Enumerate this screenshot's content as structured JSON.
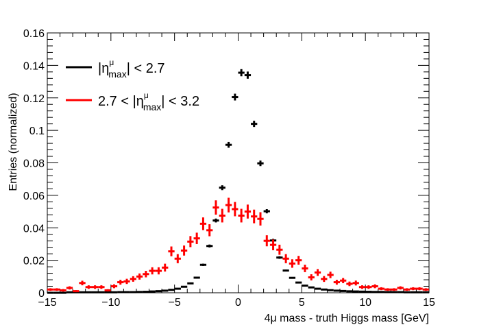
{
  "chart_data": {
    "type": "scatter",
    "ylabel": "Entries (normalized)",
    "xlabel": "4μ mass - truth Higgs mass [GeV]",
    "xlim": [
      -15,
      15
    ],
    "ylim": [
      0,
      0.16
    ],
    "x_ticks": [
      -15,
      -10,
      -5,
      0,
      5,
      10,
      15
    ],
    "x_tick_labels": [
      "−15",
      "−10",
      "−5",
      "0",
      "5",
      "10",
      "15"
    ],
    "y_ticks": [
      0,
      0.02,
      0.04,
      0.06,
      0.08,
      0.1,
      0.12,
      0.14,
      0.16
    ],
    "y_tick_labels": [
      "0",
      "0.02",
      "0.04",
      "0.06",
      "0.08",
      "0.1",
      "0.12",
      "0.14",
      "0.16"
    ],
    "legend_position": "top-left",
    "bin_width": 0.5,
    "series": [
      {
        "legend_parts": [
          "|η",
          "μ",
          "max",
          "| < 2.7"
        ],
        "color": "#000000",
        "x": [
          -15.25,
          -14.75,
          -14.25,
          -13.75,
          -13.25,
          -12.75,
          -12.25,
          -11.75,
          -11.25,
          -10.75,
          -10.25,
          -9.75,
          -9.25,
          -8.75,
          -8.25,
          -7.75,
          -7.25,
          -6.75,
          -6.25,
          -5.75,
          -5.25,
          -4.75,
          -4.25,
          -3.75,
          -3.25,
          -2.75,
          -2.25,
          -1.75,
          -1.25,
          -0.75,
          -0.25,
          0.25,
          0.75,
          1.25,
          1.75,
          2.25,
          2.75,
          3.25,
          3.75,
          4.25,
          4.75,
          5.25,
          5.75,
          6.25,
          6.75,
          7.25,
          7.75,
          8.25,
          8.75,
          9.25,
          9.75,
          10.25,
          10.75,
          11.25,
          11.75,
          12.25,
          12.75,
          13.25,
          13.75,
          14.25,
          14.75
        ],
        "y": [
          0,
          0,
          0,
          0,
          0.0003,
          0.0003,
          0.0003,
          0.0003,
          0.0003,
          0.0003,
          0.0003,
          0.0003,
          0.0004,
          0.0004,
          0.0004,
          0.0005,
          0.0006,
          0.0008,
          0.001,
          0.0013,
          0.0018,
          0.0025,
          0.0037,
          0.0058,
          0.0093,
          0.0172,
          0.0288,
          0.0445,
          0.0647,
          0.0911,
          0.1205,
          0.1355,
          0.134,
          0.104,
          0.0797,
          0.0502,
          0.0322,
          0.0217,
          0.0137,
          0.0092,
          0.0063,
          0.0044,
          0.0033,
          0.0025,
          0.002,
          0.0016,
          0.0013,
          0.0011,
          0.0009,
          0.0008,
          0.0007,
          0.0006,
          0.0005,
          0.0005,
          0.0004,
          0.0004,
          0.0004,
          0.0003,
          0.0003,
          0.0003,
          0.0003
        ],
        "err": [
          0,
          0,
          0,
          0,
          0,
          0,
          0,
          0,
          0,
          0,
          0,
          0,
          0,
          0,
          0,
          0,
          0,
          0,
          0,
          0,
          0,
          0,
          0,
          0,
          0.0005,
          0.0007,
          0.0009,
          0.0012,
          0.0015,
          0.0018,
          0.0021,
          0.0022,
          0.0022,
          0.0019,
          0.0017,
          0.0013,
          0.001,
          0.0008,
          0.0006,
          0.0005,
          0,
          0,
          0,
          0,
          0,
          0,
          0,
          0,
          0,
          0,
          0,
          0,
          0,
          0,
          0,
          0,
          0,
          0,
          0,
          0,
          0
        ]
      },
      {
        "legend_parts": [
          "2.7 < |η",
          "μ",
          "max",
          "| < 3.2"
        ],
        "color": "#ff0000",
        "x": [
          -15.25,
          -14.75,
          -14.25,
          -13.75,
          -13.25,
          -12.75,
          -12.25,
          -11.75,
          -11.25,
          -10.75,
          -10.25,
          -9.75,
          -9.25,
          -8.75,
          -8.25,
          -7.75,
          -7.25,
          -6.75,
          -6.25,
          -5.75,
          -5.25,
          -4.75,
          -4.25,
          -3.75,
          -3.25,
          -2.75,
          -2.25,
          -1.75,
          -1.25,
          -0.75,
          -0.25,
          0.25,
          0.75,
          1.25,
          1.75,
          2.25,
          2.75,
          3.25,
          3.75,
          4.25,
          4.75,
          5.25,
          5.75,
          6.25,
          6.75,
          7.25,
          7.75,
          8.25,
          8.75,
          9.25,
          9.75,
          10.25,
          10.75,
          11.25,
          11.75,
          12.25,
          12.75,
          13.25,
          13.75,
          14.25,
          14.75
        ],
        "y": [
          0.002,
          0.002,
          0.002,
          0.0015,
          0.003,
          0.001,
          0.006,
          0.0035,
          0.0035,
          0.0035,
          0.0015,
          0.004,
          0.0065,
          0.007,
          0.0085,
          0.01,
          0.0115,
          0.0135,
          0.0135,
          0.0155,
          0.0255,
          0.021,
          0.026,
          0.0315,
          0.0335,
          0.0425,
          0.0385,
          0.0525,
          0.0475,
          0.054,
          0.0515,
          0.0475,
          0.05,
          0.047,
          0.0455,
          0.032,
          0.0295,
          0.0265,
          0.021,
          0.018,
          0.02,
          0.015,
          0.0095,
          0.0125,
          0.0085,
          0.011,
          0.0065,
          0.0075,
          0.0055,
          0.006,
          0.0035,
          0.0035,
          0.004,
          0.0025,
          0.002,
          0.002,
          0.003,
          0.002,
          0.0025,
          0.0025,
          0.002
        ],
        "err": [
          0.0008,
          0.0008,
          0.0008,
          0.0008,
          0.001,
          0.0006,
          0.0014,
          0.0011,
          0.0011,
          0.0011,
          0.0007,
          0.0012,
          0.0015,
          0.0016,
          0.0017,
          0.0019,
          0.002,
          0.0022,
          0.0022,
          0.0024,
          0.003,
          0.0028,
          0.0031,
          0.0034,
          0.0035,
          0.0039,
          0.0037,
          0.0044,
          0.0042,
          0.0045,
          0.0044,
          0.0042,
          0.0043,
          0.0042,
          0.0041,
          0.0034,
          0.0033,
          0.0031,
          0.0028,
          0.0026,
          0.0027,
          0.0023,
          0.0019,
          0.0021,
          0.0018,
          0.002,
          0.0015,
          0.0016,
          0.0014,
          0.0015,
          0.0011,
          0.0011,
          0.0012,
          0.0009,
          0.0008,
          0.0008,
          0.001,
          0.0008,
          0.0009,
          0.0009,
          0.0008
        ]
      }
    ]
  }
}
